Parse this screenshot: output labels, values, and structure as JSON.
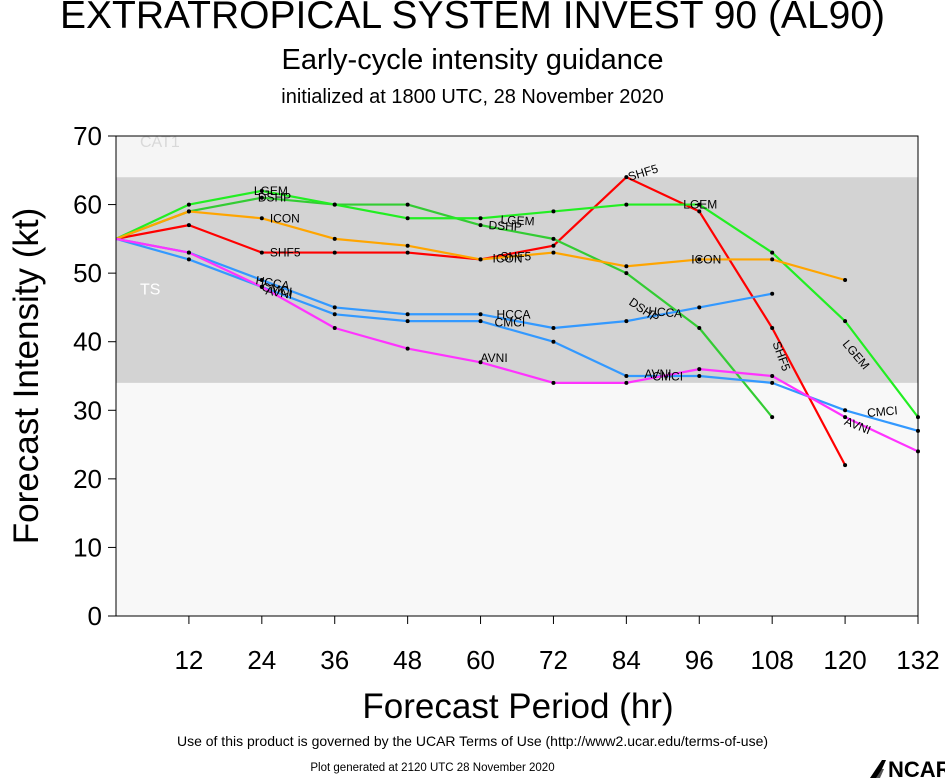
{
  "title": "EXTRATROPICAL SYSTEM INVEST 90 (AL90)",
  "subtitle": "Early-cycle intensity guidance",
  "init_line": "initialized at 1800 UTC, 28 November 2020",
  "terms": "Use of this product is governed by the UCAR Terms of Use (http://www2.ucar.edu/terms-of-use)",
  "generated": "Plot generated at 2120 UTC   28 November 2020",
  "logo_text": "NCAR",
  "colors": {
    "red": "#ff0000",
    "green": "#33cc33",
    "bright_green": "#22ee22",
    "orange": "#ffa500",
    "blue": "#3399ff",
    "magenta": "#ff33ff",
    "ts_band": "#d3d3d3",
    "cat1_band": "#f5f5f5"
  },
  "chart_data": {
    "type": "line",
    "xlabel": "Forecast Period (hr)",
    "ylabel": "Forecast Intensity (kt)",
    "xlim": [
      0,
      132
    ],
    "ylim": [
      0,
      70
    ],
    "xticks": [
      12,
      24,
      36,
      48,
      60,
      72,
      84,
      96,
      108,
      120,
      132
    ],
    "yticks": [
      0,
      10,
      20,
      30,
      40,
      50,
      60,
      70
    ],
    "bands": [
      {
        "name": "TS",
        "from": 34,
        "to": 64
      },
      {
        "name": "CAT1",
        "from": 64,
        "to": 70
      }
    ],
    "series": [
      {
        "name": "SHF5",
        "color": "red",
        "x": [
          0,
          12,
          24,
          36,
          48,
          60,
          72,
          84,
          96,
          108,
          120
        ],
        "y": [
          55,
          57,
          53,
          53,
          53,
          52,
          54,
          64,
          59,
          42,
          22
        ]
      },
      {
        "name": "DSHP",
        "color": "green",
        "x": [
          0,
          12,
          24,
          36,
          48,
          60,
          72,
          84,
          96,
          108
        ],
        "y": [
          55,
          59,
          61,
          60,
          60,
          57,
          55,
          50,
          42,
          29
        ]
      },
      {
        "name": "LGEM",
        "color": "bright_green",
        "x": [
          0,
          12,
          24,
          36,
          48,
          60,
          72,
          84,
          96,
          108,
          120,
          132
        ],
        "y": [
          55,
          60,
          62,
          60,
          58,
          58,
          59,
          60,
          60,
          53,
          43,
          29
        ]
      },
      {
        "name": "ICON",
        "color": "orange",
        "x": [
          0,
          12,
          24,
          36,
          48,
          60,
          72,
          84,
          96,
          108,
          120
        ],
        "y": [
          55,
          59,
          58,
          55,
          54,
          52,
          53,
          51,
          52,
          52,
          49
        ]
      },
      {
        "name": "HCCA",
        "color": "blue",
        "x": [
          0,
          12,
          24,
          36,
          48,
          60,
          72,
          84,
          96,
          108
        ],
        "y": [
          55,
          53,
          49,
          45,
          44,
          44,
          42,
          43,
          45,
          47
        ]
      },
      {
        "name": "CMCI",
        "color": "blue",
        "x": [
          0,
          12,
          24,
          36,
          48,
          60,
          72,
          84,
          96,
          108,
          120,
          132
        ],
        "y": [
          55,
          52,
          48,
          44,
          43,
          43,
          40,
          35,
          35,
          34,
          30,
          27
        ]
      },
      {
        "name": "AVNI",
        "color": "magenta",
        "x": [
          0,
          12,
          24,
          36,
          48,
          60,
          72,
          84,
          96,
          108,
          120,
          132
        ],
        "y": [
          55,
          53,
          48,
          42,
          39,
          37,
          34,
          34,
          36,
          35,
          29,
          24
        ]
      }
    ],
    "series_labels": [
      {
        "text": "SHF5",
        "x": 84,
        "y": 64,
        "angle": -17,
        "color": "red",
        "dx": 2
      },
      {
        "text": "LGEM",
        "x": 24,
        "y": 62,
        "angle": 0,
        "color": "bright_green",
        "dx": -8
      },
      {
        "text": "DSHP",
        "x": 24,
        "y": 61,
        "angle": 0,
        "color": "green",
        "dx": -4
      },
      {
        "text": "ICON",
        "x": 24,
        "y": 58,
        "angle": 0,
        "color": "orange",
        "dx": 8
      },
      {
        "text": "SHF5",
        "x": 24,
        "y": 53,
        "angle": 0,
        "color": "red",
        "dx": 8
      },
      {
        "text": "HCCA",
        "x": 24,
        "y": 49,
        "angle": 10,
        "color": "blue",
        "dx": -6
      },
      {
        "text": "CMCI",
        "x": 24,
        "y": 48,
        "angle": 10,
        "color": "blue",
        "dx": 0
      },
      {
        "text": "AVNI",
        "x": 24,
        "y": 47.5,
        "angle": 10,
        "color": "magenta",
        "dx": 4
      },
      {
        "text": "DSHP",
        "x": 60,
        "y": 57,
        "angle": 3,
        "color": "green",
        "dx": 8
      },
      {
        "text": "LGEM",
        "x": 60,
        "y": 57.8,
        "angle": 3,
        "color": "bright_green",
        "dx": 20
      },
      {
        "text": "SHF5",
        "x": 60,
        "y": 52.4,
        "angle": 0,
        "color": "red",
        "dx": 20
      },
      {
        "text": "ICON",
        "x": 60,
        "y": 52.1,
        "angle": 0,
        "color": "orange",
        "dx": 12
      },
      {
        "text": "HCCA",
        "x": 60,
        "y": 44,
        "angle": 0,
        "color": "blue",
        "dx": 16
      },
      {
        "text": "CMCI",
        "x": 60,
        "y": 42.8,
        "angle": 0,
        "color": "blue",
        "dx": 14
      },
      {
        "text": "AVNI",
        "x": 60,
        "y": 37.6,
        "angle": 0,
        "color": "magenta",
        "dx": 0
      },
      {
        "text": "DSHP",
        "x": 84,
        "y": 46,
        "angle": 35,
        "color": "green",
        "dx": 4
      },
      {
        "text": "HCCA",
        "x": 84,
        "y": 44.5,
        "angle": 5,
        "color": "blue",
        "dx": 22
      },
      {
        "text": "CMCI",
        "x": 84,
        "y": 34.9,
        "angle": 0,
        "color": "blue",
        "dx": 26
      },
      {
        "text": "AVNI",
        "x": 84,
        "y": 35.3,
        "angle": 0,
        "color": "magenta",
        "dx": 18
      },
      {
        "text": "LGEM",
        "x": 96,
        "y": 60,
        "angle": 0,
        "color": "bright_green",
        "dx": -16
      },
      {
        "text": "ICON",
        "x": 96,
        "y": 52,
        "angle": 0,
        "color": "orange",
        "dx": -8
      },
      {
        "text": "SHF5",
        "x": 108,
        "y": 40,
        "angle": 70,
        "color": "red",
        "dx": 4
      },
      {
        "text": "LGEM",
        "x": 120,
        "y": 40,
        "angle": 50,
        "color": "bright_green",
        "dx": 0
      },
      {
        "text": "CMCI",
        "x": 120,
        "y": 29.6,
        "angle": -5,
        "color": "blue",
        "dx": 22
      },
      {
        "text": "AVNI",
        "x": 120,
        "y": 28.5,
        "angle": 22,
        "color": "magenta",
        "dx": 0
      }
    ]
  }
}
